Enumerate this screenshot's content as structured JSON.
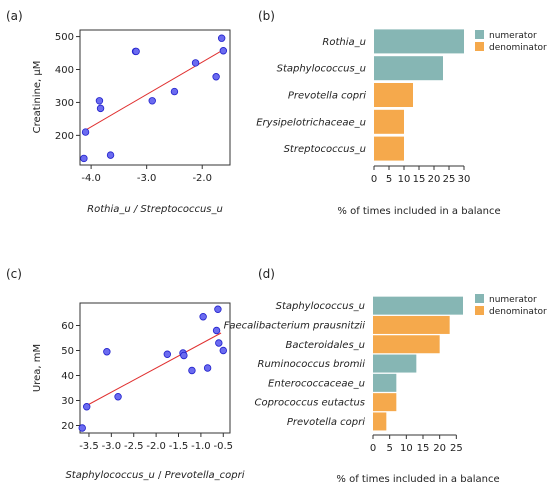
{
  "colors": {
    "point_fill": "#6b6bf0",
    "point_stroke": "#2222cc",
    "fit_line": "#e03030",
    "numerator": "#86b6b4",
    "denominator": "#f5a94c"
  },
  "chart_data": [
    {
      "type": "scatter",
      "panel": "(a)",
      "xlabel": "Rothia_u / Streptococcus_u",
      "ylabel": "Creatinine, µM",
      "xlim": [
        -4.2,
        -1.5
      ],
      "ylim": [
        110,
        520
      ],
      "xticks": [
        -4.0,
        -3.0,
        -2.0
      ],
      "xtick_labels": [
        "-4.0",
        "-3.0",
        "-2.0"
      ],
      "yticks": [
        200,
        300,
        400,
        500
      ],
      "ytick_labels": [
        "200",
        "300",
        "400",
        "500"
      ],
      "points": [
        {
          "x": -4.13,
          "y": 130
        },
        {
          "x": -4.1,
          "y": 210
        },
        {
          "x": -3.85,
          "y": 305
        },
        {
          "x": -3.83,
          "y": 282
        },
        {
          "x": -3.65,
          "y": 140
        },
        {
          "x": -3.2,
          "y": 455
        },
        {
          "x": -3.19,
          "y": 455
        },
        {
          "x": -2.9,
          "y": 305
        },
        {
          "x": -2.5,
          "y": 333
        },
        {
          "x": -2.12,
          "y": 420
        },
        {
          "x": -1.75,
          "y": 378
        },
        {
          "x": -1.65,
          "y": 495
        },
        {
          "x": -1.62,
          "y": 457
        }
      ],
      "fit": [
        {
          "x": -4.13,
          "y": 213
        },
        {
          "x": -1.62,
          "y": 460
        }
      ]
    },
    {
      "type": "bar",
      "panel": "(b)",
      "orientation": "horizontal",
      "categories": [
        "Rothia_u",
        "Staphylococcus_u",
        "Prevotella copri",
        "Erysipelotrichaceae_u",
        "Streptococcus_u"
      ],
      "values": [
        30,
        23,
        13,
        10,
        10
      ],
      "groups": [
        "numerator",
        "numerator",
        "denominator",
        "denominator",
        "denominator"
      ],
      "xlim": [
        0,
        30
      ],
      "xticks": [
        0,
        5,
        10,
        15,
        20,
        25,
        30
      ],
      "xtick_labels": [
        "0",
        "5",
        "10",
        "15",
        "20",
        "25",
        "30"
      ],
      "xlabel": "% of times included in a balance",
      "legend": [
        "numerator",
        "denominator"
      ],
      "legend_position": "top-right"
    },
    {
      "type": "scatter",
      "panel": "(c)",
      "xlabel_numerator": "Staphylococcus_u",
      "xlabel_separator": " / ",
      "xlabel_denominator": "Prevotella_copri",
      "ylabel": "Urea, mM",
      "xlim": [
        -3.7,
        -0.35
      ],
      "ylim": [
        17,
        69
      ],
      "xticks": [
        -3.5,
        -3.0,
        -2.5,
        -2.0,
        -1.5,
        -1.0,
        -0.5
      ],
      "xtick_labels": [
        "-3.5",
        "-3.0",
        "-2.5",
        "-2.0",
        "-1.5",
        "-1.0",
        "-0.5"
      ],
      "yticks": [
        20,
        30,
        40,
        50,
        60
      ],
      "ytick_labels": [
        "20",
        "30",
        "40",
        "50",
        "60"
      ],
      "points": [
        {
          "x": -3.65,
          "y": 19
        },
        {
          "x": -3.55,
          "y": 27.5
        },
        {
          "x": -3.1,
          "y": 49.5
        },
        {
          "x": -2.85,
          "y": 31.5
        },
        {
          "x": -1.75,
          "y": 48.5
        },
        {
          "x": -1.4,
          "y": 49
        },
        {
          "x": -1.38,
          "y": 48
        },
        {
          "x": -1.2,
          "y": 42
        },
        {
          "x": -0.95,
          "y": 63.5
        },
        {
          "x": -0.85,
          "y": 43
        },
        {
          "x": -0.65,
          "y": 58
        },
        {
          "x": -0.62,
          "y": 66.5
        },
        {
          "x": -0.6,
          "y": 53
        },
        {
          "x": -0.5,
          "y": 50
        }
      ],
      "fit": [
        {
          "x": -3.55,
          "y": 28
        },
        {
          "x": -0.55,
          "y": 57
        }
      ]
    },
    {
      "type": "bar",
      "panel": "(d)",
      "orientation": "horizontal",
      "categories": [
        "Staphylococcus_u",
        "Faecalibacterium prausnitzii",
        "Bacteroidales_u",
        "Ruminococcus bromii",
        "Enterococcaceae_u",
        "Coprococcus eutactus",
        "Prevotella copri"
      ],
      "values": [
        27,
        23,
        20,
        13,
        7,
        7,
        4
      ],
      "groups": [
        "numerator",
        "denominator",
        "denominator",
        "numerator",
        "numerator",
        "denominator",
        "denominator"
      ],
      "xlim": [
        0,
        27
      ],
      "xticks": [
        0,
        5,
        10,
        15,
        20,
        25
      ],
      "xtick_labels": [
        "0",
        "5",
        "10",
        "15",
        "20",
        "25"
      ],
      "xlabel": "% of times included in a balance",
      "legend": [
        "numerator",
        "denominator"
      ],
      "legend_position": "top-right"
    }
  ]
}
